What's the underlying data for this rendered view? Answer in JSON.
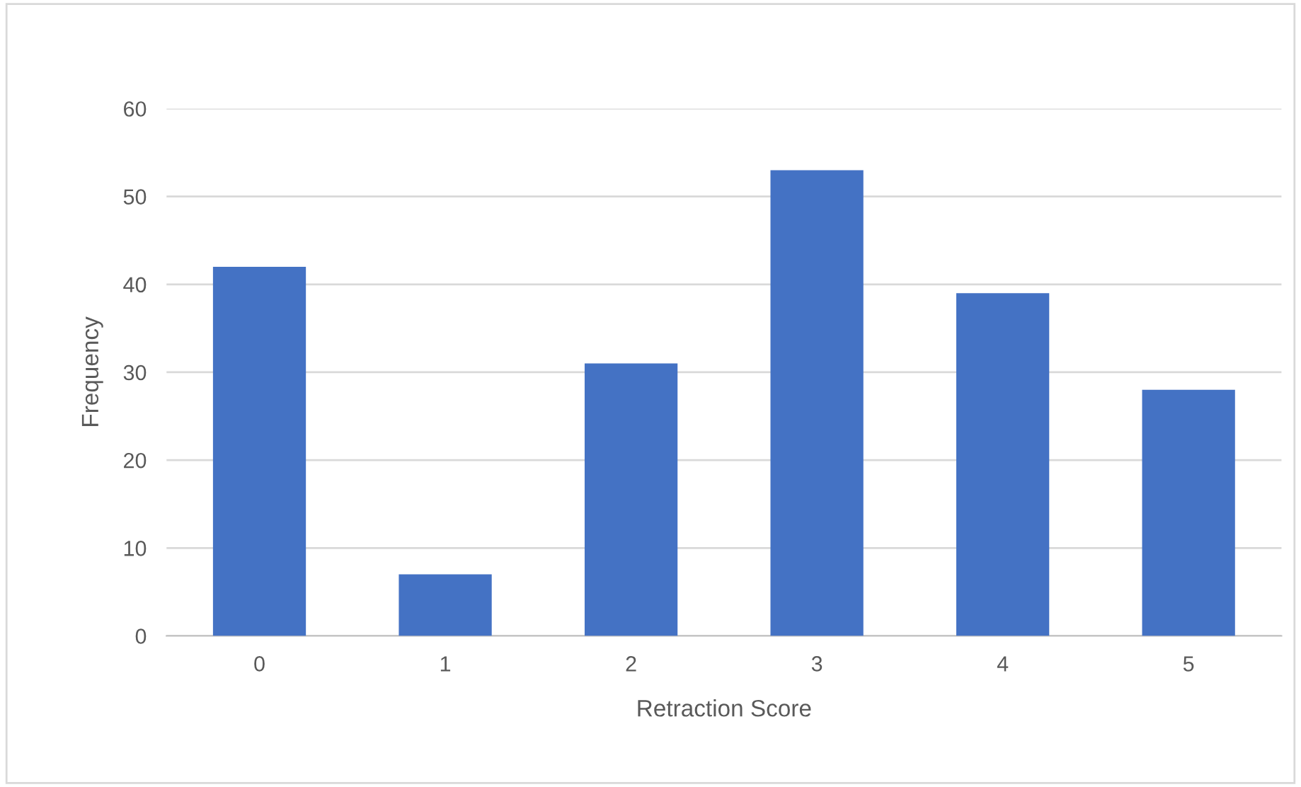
{
  "chart_data": {
    "type": "bar",
    "xlabel": "Retraction Score",
    "ylabel": "Frequency",
    "categories": [
      "0",
      "1",
      "2",
      "3",
      "4",
      "5"
    ],
    "values": [
      42,
      7,
      31,
      53,
      39,
      28
    ],
    "color": "#4472c4",
    "ylim": [
      0,
      60
    ],
    "yticks": [
      0,
      10,
      20,
      30,
      40,
      50,
      60
    ],
    "grid": "y",
    "legend": false
  }
}
